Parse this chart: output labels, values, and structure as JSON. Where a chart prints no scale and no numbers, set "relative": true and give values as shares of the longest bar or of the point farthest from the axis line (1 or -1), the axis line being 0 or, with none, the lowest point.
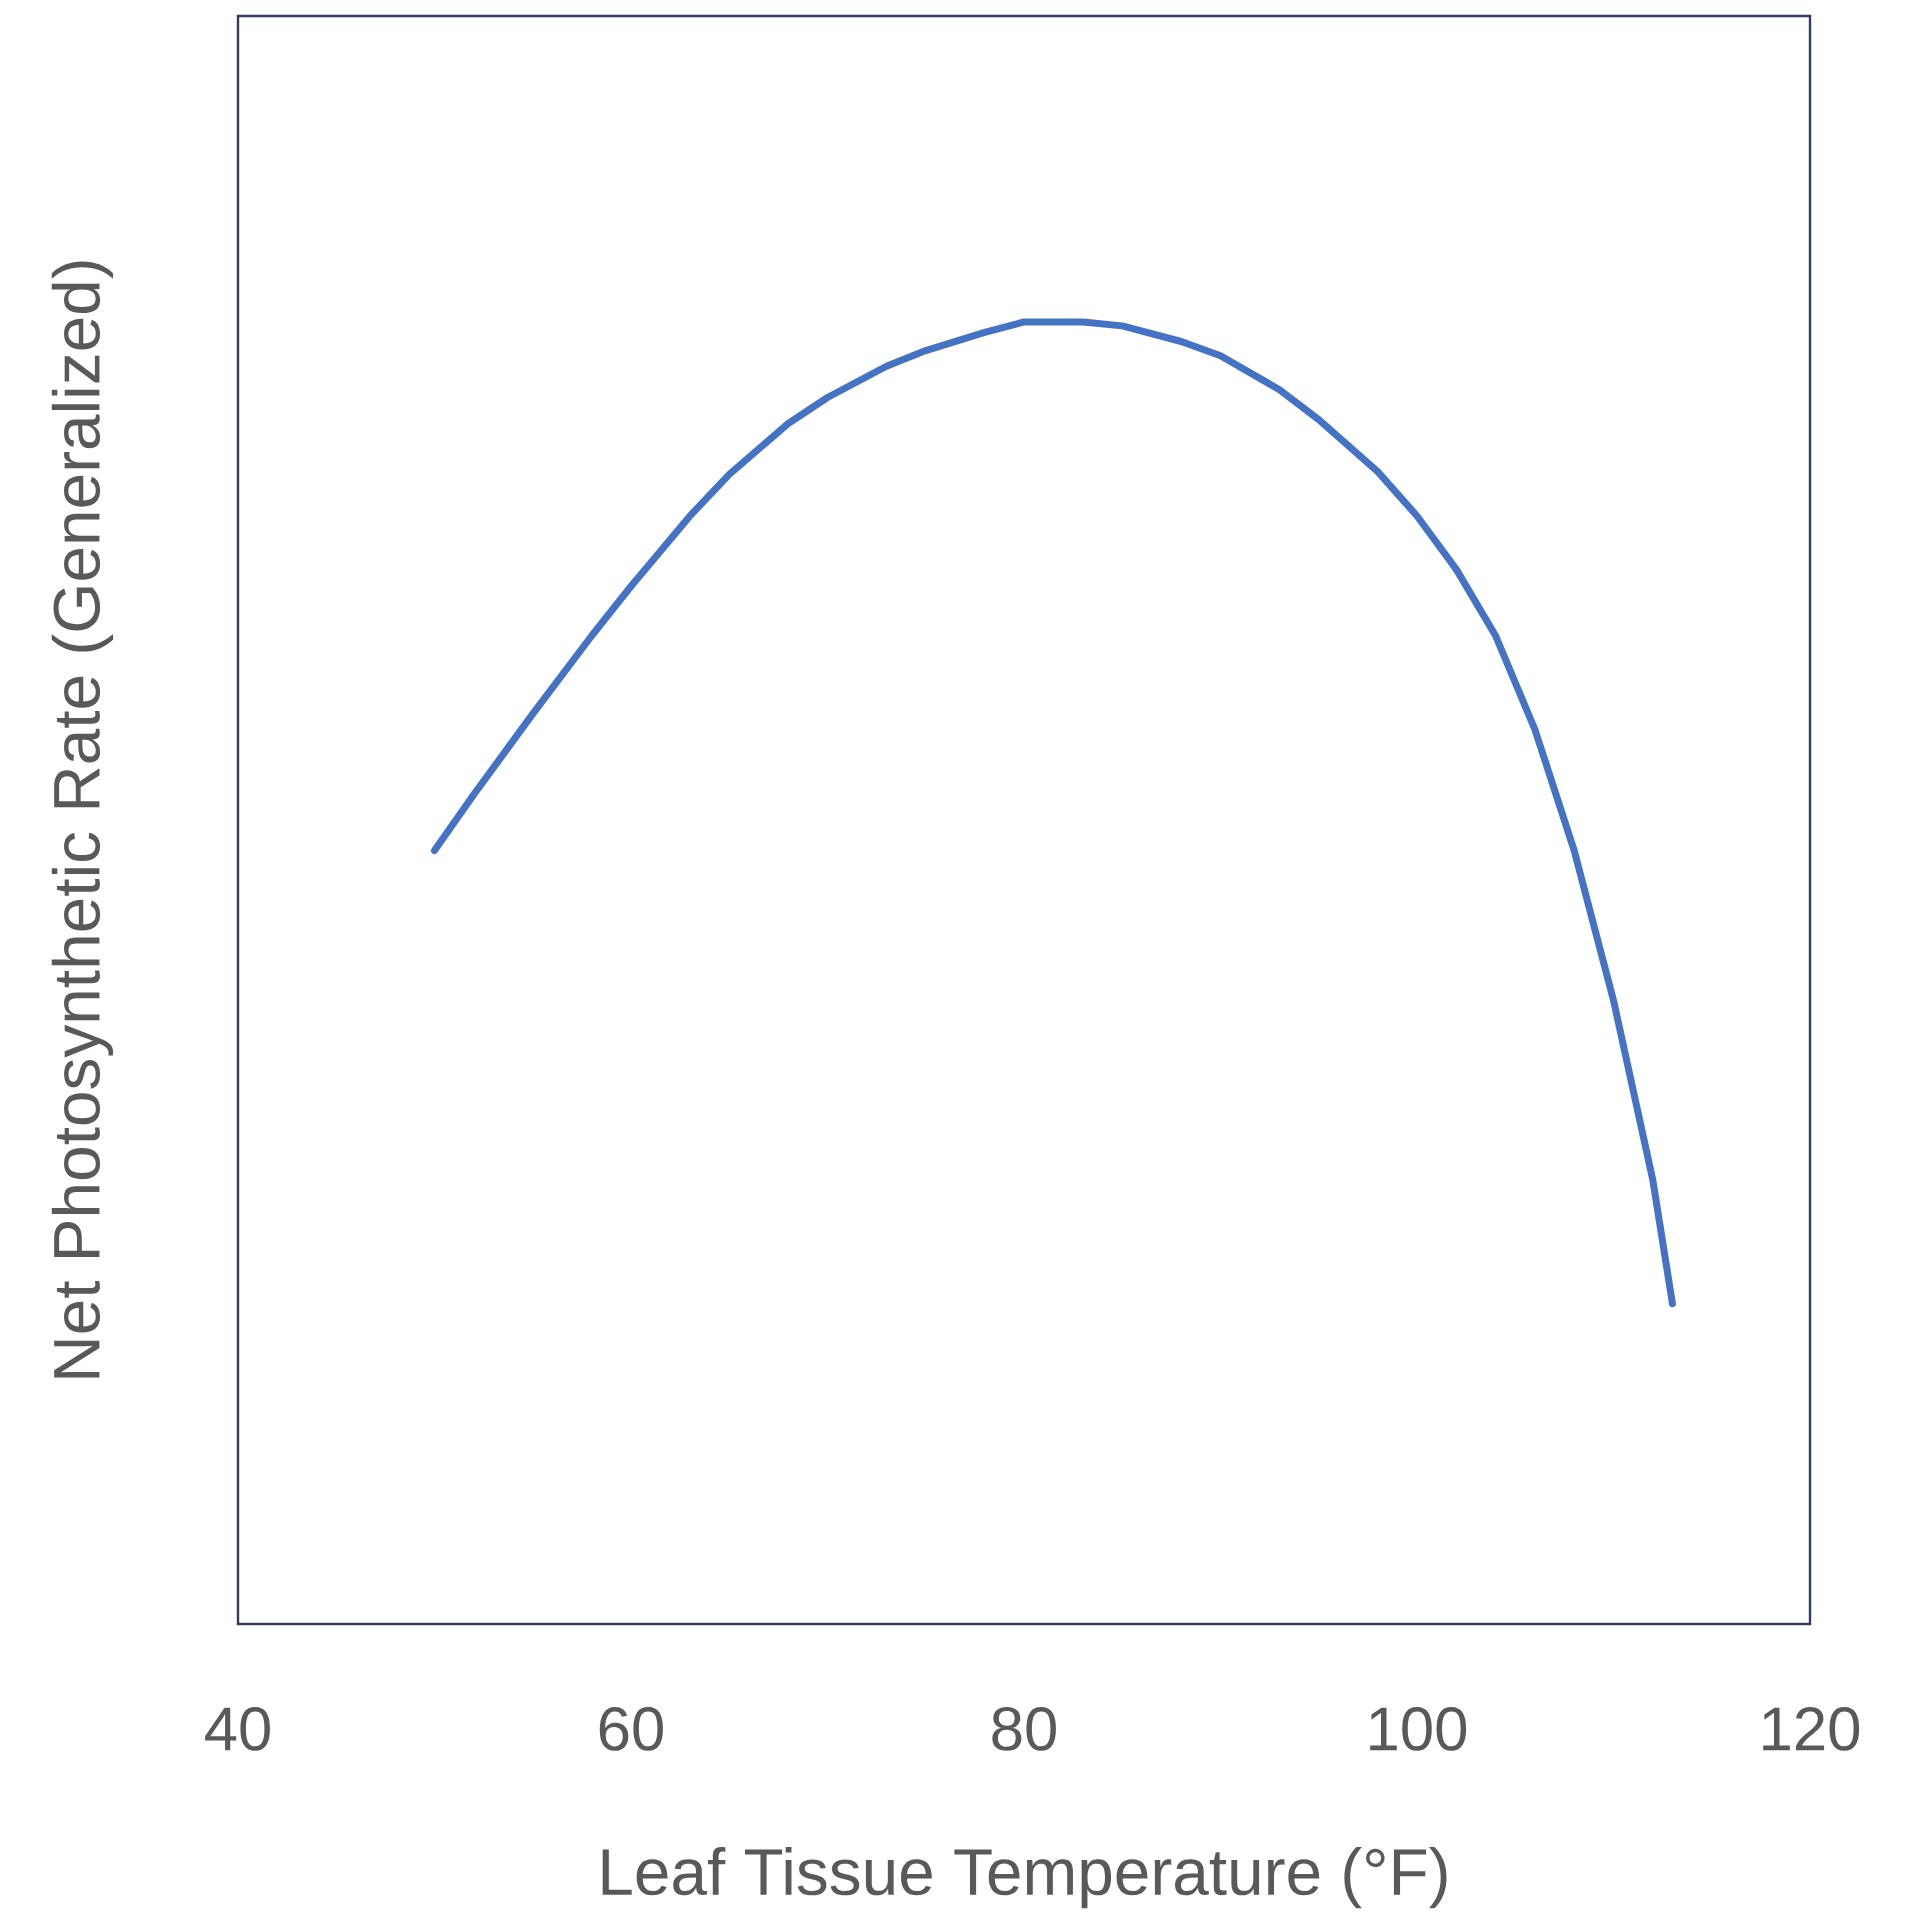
{
  "chart_data": {
    "type": "line",
    "relative": true,
    "xlabel": "Leaf Tissue Temperature (°F)",
    "ylabel": "Net Photosynthetic Rate (Generalized)",
    "xlim": [
      40,
      120
    ],
    "xticks": [
      40,
      60,
      80,
      100,
      120
    ],
    "grid": false,
    "marker": "none",
    "line_style": "solid",
    "x": [
      50,
      52,
      55,
      58,
      60,
      63,
      65,
      68,
      70,
      73,
      75,
      78,
      80,
      83,
      85,
      88,
      90,
      93,
      95,
      98,
      100,
      102,
      104,
      106,
      108,
      110,
      112,
      113
    ],
    "series": [
      {
        "color": "#4472c4",
        "values": [
          0.594,
          0.637,
          0.699,
          0.759,
          0.797,
          0.851,
          0.883,
          0.922,
          0.942,
          0.966,
          0.978,
          0.992,
          1.0,
          1.0,
          0.997,
          0.985,
          0.974,
          0.948,
          0.925,
          0.885,
          0.851,
          0.81,
          0.759,
          0.687,
          0.594,
          0.479,
          0.341,
          0.246
        ]
      }
    ]
  }
}
